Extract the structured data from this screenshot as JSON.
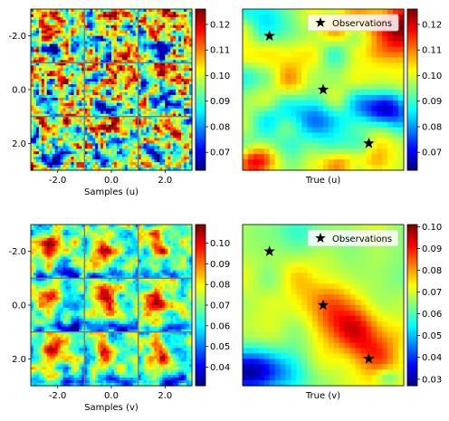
{
  "chart_data": [
    {
      "type": "heatmap",
      "panel": "top-left",
      "layout": "3x3 grid of sample fields",
      "xlabel": "Samples (u)",
      "xticks": [
        "-2.0",
        "0.0",
        "2.0"
      ],
      "yticks": [
        "-2.0",
        "0.0",
        "2.0"
      ],
      "xlim": [
        -3,
        3
      ],
      "ylim": [
        3,
        -3
      ],
      "colorbar": {
        "ticks": [
          "0.07",
          "0.08",
          "0.09",
          "0.10",
          "0.11",
          "0.12"
        ],
        "range": [
          0.063,
          0.126
        ],
        "cmap": "jet"
      }
    },
    {
      "type": "heatmap",
      "panel": "top-right",
      "xlabel": "True (u)",
      "colorbar": {
        "ticks": [
          "0.07",
          "0.08",
          "0.09",
          "0.10",
          "0.11",
          "0.12"
        ],
        "range": [
          0.063,
          0.126
        ],
        "cmap": "jet"
      },
      "legend": {
        "label": "Observations",
        "position": "top-right"
      },
      "observations": [
        {
          "x": -2.0,
          "y": -2.0
        },
        {
          "x": 0.0,
          "y": 0.0
        },
        {
          "x": 1.7,
          "y": 2.0
        }
      ]
    },
    {
      "type": "heatmap",
      "panel": "bottom-left",
      "layout": "3x3 grid of sample fields",
      "xlabel": "Samples (v)",
      "xticks": [
        "-2.0",
        "0.0",
        "2.0"
      ],
      "yticks": [
        "-2.0",
        "0.0",
        "2.0"
      ],
      "xlim": [
        -3,
        3
      ],
      "ylim": [
        3,
        -3
      ],
      "colorbar": {
        "ticks": [
          "0.04",
          "0.05",
          "0.06",
          "0.07",
          "0.08",
          "0.09",
          "0.10"
        ],
        "range": [
          0.031,
          0.109
        ],
        "cmap": "jet"
      }
    },
    {
      "type": "heatmap",
      "panel": "bottom-right",
      "xlabel": "True (v)",
      "colorbar": {
        "ticks": [
          "0.03",
          "0.04",
          "0.05",
          "0.06",
          "0.07",
          "0.08",
          "0.09",
          "0.10"
        ],
        "range": [
          0.027,
          0.101
        ],
        "cmap": "jet"
      },
      "legend": {
        "label": "Observations",
        "position": "top-right"
      },
      "observations": [
        {
          "x": -2.0,
          "y": -2.0
        },
        {
          "x": 0.0,
          "y": 0.0
        },
        {
          "x": 1.7,
          "y": 2.0
        }
      ]
    }
  ]
}
